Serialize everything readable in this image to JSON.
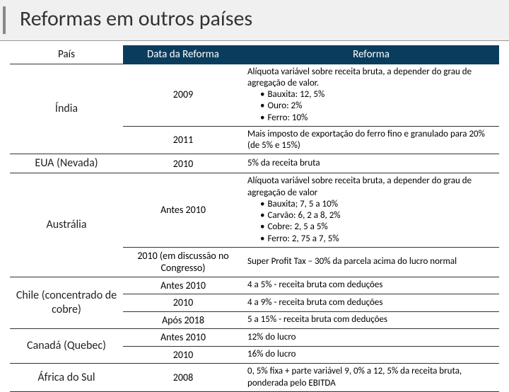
{
  "title": "Reformas em outros países",
  "headers": {
    "pais": "País",
    "data": "Data da Reforma",
    "reforma": "Reforma"
  },
  "rows": {
    "india": {
      "country": "Índia",
      "r1": {
        "date": "2009",
        "lead": "Alíquota variável sobre receita bruta, a depender do grau de agregação de valor.",
        "b1": "Bauxita: 12, 5%",
        "b2": "Ouro: 2%",
        "b3": "Ferro: 10%"
      },
      "r2": {
        "date": "2011",
        "desc": "Mais imposto de exportação do ferro fino e granulado para 20% (de 5% e 15%)"
      }
    },
    "eua": {
      "country": "EUA (Nevada)",
      "date": "2010",
      "desc": "5% da receita bruta"
    },
    "australia": {
      "country": "Austrália",
      "r1": {
        "date": "Antes 2010",
        "lead": "Alíquota variável sobre receita bruta, a depender do grau de agregação de valor",
        "b1": "Bauxita; 7, 5 a 10%",
        "b2": "Carvão: 6, 2 a 8, 2%",
        "b3": "Cobre: 2, 5 a 5%",
        "b4": "Ferro: 2, 75 a 7, 5%"
      },
      "r2": {
        "date": "2010 (em discussão no Congresso)",
        "desc": "Super Profit Tax – 30% da parcela acima do lucro normal"
      }
    },
    "chile": {
      "country": "Chile (concentrado de cobre)",
      "r1": {
        "date": "Antes 2010",
        "desc": "4 a 5% - receita bruta com deduções"
      },
      "r2": {
        "date": "2010",
        "desc": "4 a 9% - receita bruta com deduções"
      },
      "r3": {
        "date": "Após 2018",
        "desc": "5 a 15% - receita bruta com deduções"
      }
    },
    "canada": {
      "country": "Canadá (Quebec)",
      "r1": {
        "date": "Antes 2010",
        "desc": "12% do lucro"
      },
      "r2": {
        "date": "2010",
        "desc": "16% do lucro"
      }
    },
    "africa": {
      "country": "África do Sul",
      "date": "2008",
      "desc": "0, 5% fixa + parte variável 9, 0% a 12, 5% da receita bruta, ponderada pelo EBITDA"
    }
  }
}
